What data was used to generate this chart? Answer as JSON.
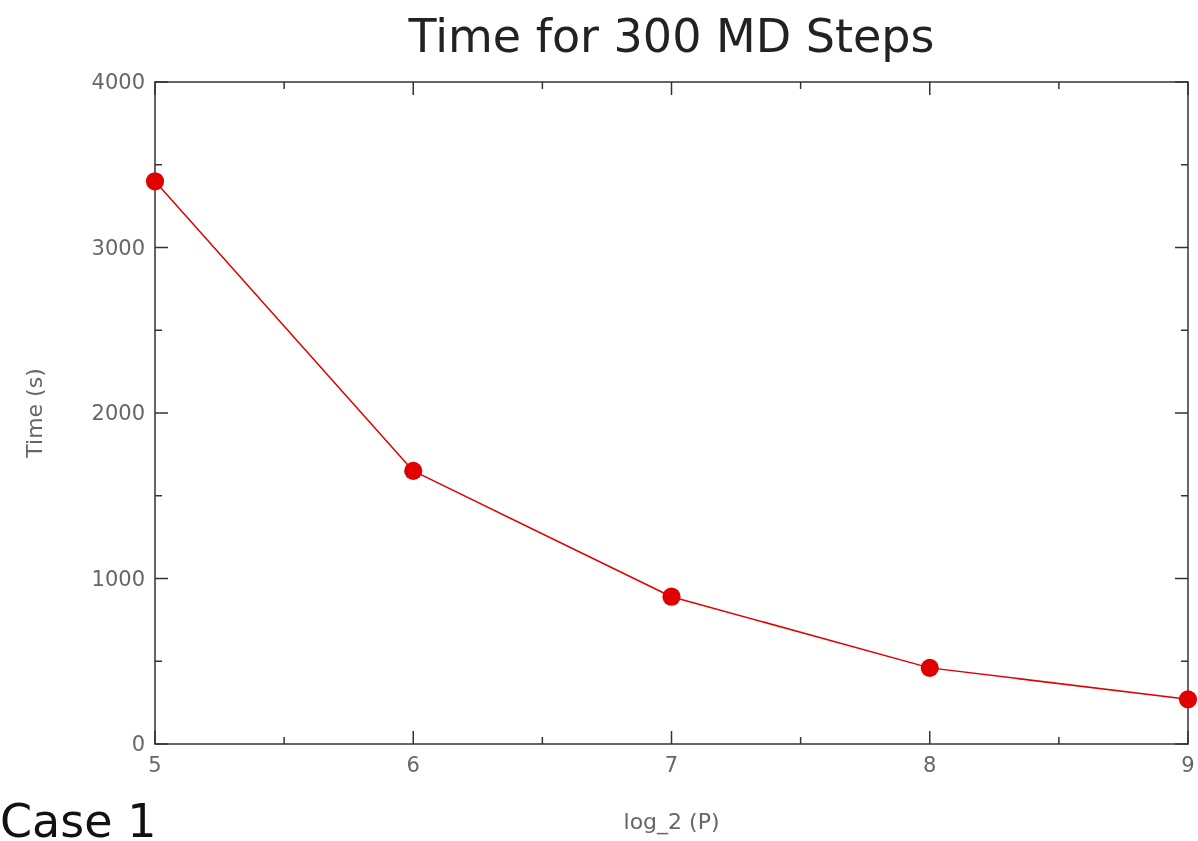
{
  "chart_data": {
    "type": "line",
    "title": "Time for 300 MD Steps",
    "xlabel": "log_2 (P)",
    "ylabel": "Time (s)",
    "annotations": [
      "Case 1"
    ],
    "x": [
      5,
      6,
      7,
      8,
      9
    ],
    "series": [
      {
        "color": "#e00000",
        "values": [
          3400,
          1650,
          890,
          460,
          270
        ]
      }
    ],
    "xlim": [
      5,
      9
    ],
    "ylim": [
      0,
      4000
    ],
    "xticks": [
      5,
      {
        "value": 5.5,
        "label": null
      },
      6,
      {
        "value": 6.5,
        "label": null
      },
      7,
      {
        "value": 7.5,
        "label": null
      },
      8,
      {
        "value": 8.5,
        "label": null
      },
      9
    ],
    "yticks": [
      0,
      {
        "value": 500,
        "label": null
      },
      1000,
      {
        "value": 1500,
        "label": null
      },
      2000,
      {
        "value": 2500,
        "label": null
      },
      3000,
      {
        "value": 3500,
        "label": null
      },
      4000
    ],
    "grid": false,
    "marker": "circle",
    "line_style": "solid"
  }
}
